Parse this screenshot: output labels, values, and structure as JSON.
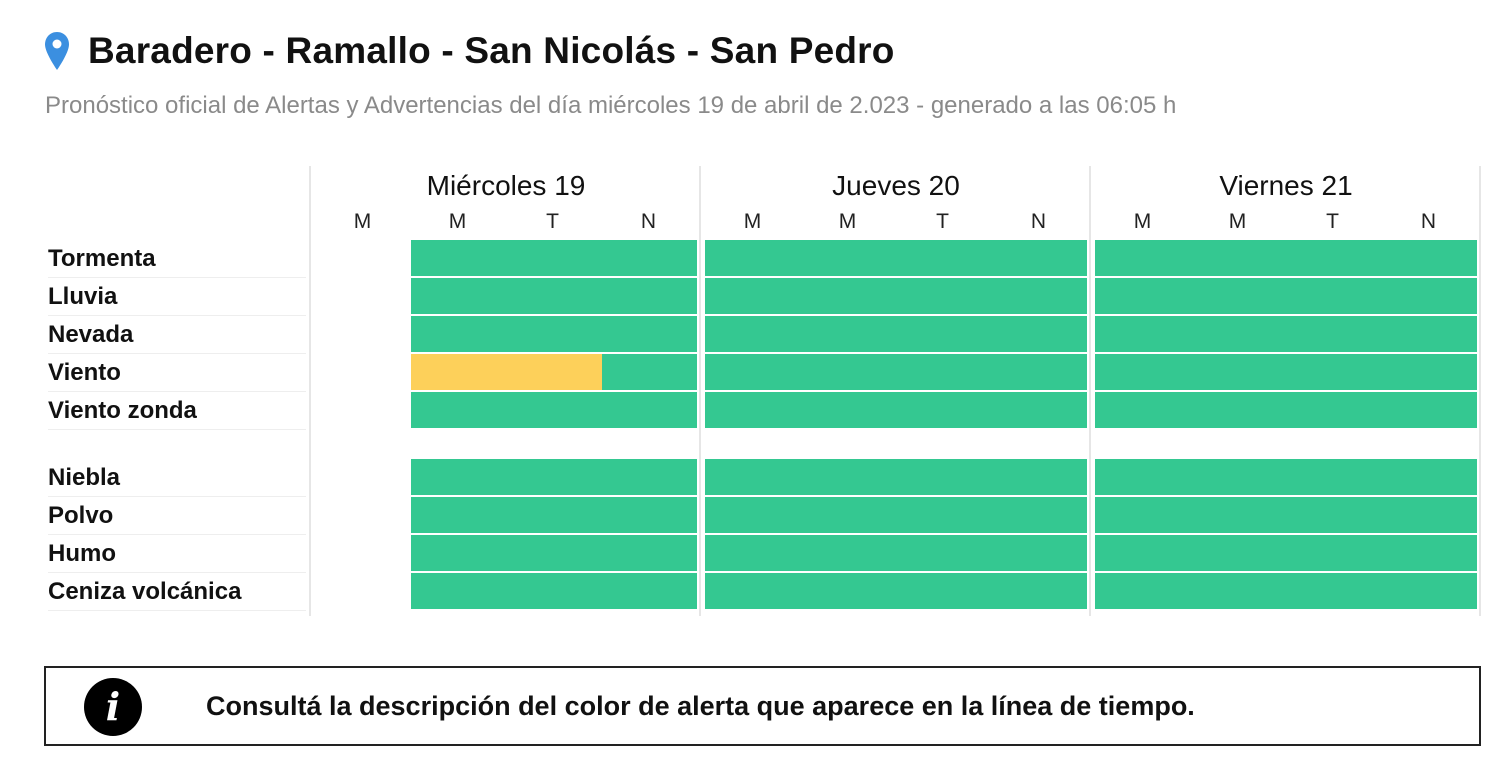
{
  "header": {
    "title": "Baradero - Ramallo - San Nicolás - San Pedro",
    "subtitle": "Pronóstico oficial de Alertas y Advertencias del día miércoles 19 de abril de 2.023 - generado a las 06:05 h",
    "pin_color": "#3b8fe0"
  },
  "timeline": {
    "days": [
      {
        "label": "Miércoles 19",
        "slots": [
          "M",
          "M",
          "T",
          "N"
        ]
      },
      {
        "label": "Jueves 20",
        "slots": [
          "M",
          "M",
          "T",
          "N"
        ]
      },
      {
        "label": "Viernes 21",
        "slots": [
          "M",
          "M",
          "T",
          "N"
        ]
      }
    ],
    "colors": {
      "green": "#34c891",
      "yellow": "#fdd05a",
      "none": "#ffffff"
    },
    "groups": [
      {
        "rows": [
          {
            "label": "Tormenta",
            "levels": [
              "none",
              "green",
              "green",
              "green",
              "green",
              "green",
              "green",
              "green",
              "green",
              "green",
              "green",
              "green"
            ]
          },
          {
            "label": "Lluvia",
            "levels": [
              "none",
              "green",
              "green",
              "green",
              "green",
              "green",
              "green",
              "green",
              "green",
              "green",
              "green",
              "green"
            ]
          },
          {
            "label": "Nevada",
            "levels": [
              "none",
              "green",
              "green",
              "green",
              "green",
              "green",
              "green",
              "green",
              "green",
              "green",
              "green",
              "green"
            ]
          },
          {
            "label": "Viento",
            "levels": [
              "none",
              "yellow",
              "yellow",
              "green",
              "green",
              "green",
              "green",
              "green",
              "green",
              "green",
              "green",
              "green"
            ]
          },
          {
            "label": "Viento zonda",
            "levels": [
              "none",
              "green",
              "green",
              "green",
              "green",
              "green",
              "green",
              "green",
              "green",
              "green",
              "green",
              "green"
            ]
          }
        ]
      },
      {
        "rows": [
          {
            "label": "Niebla",
            "levels": [
              "none",
              "green",
              "green",
              "green",
              "green",
              "green",
              "green",
              "green",
              "green",
              "green",
              "green",
              "green"
            ]
          },
          {
            "label": "Polvo",
            "levels": [
              "none",
              "green",
              "green",
              "green",
              "green",
              "green",
              "green",
              "green",
              "green",
              "green",
              "green",
              "green"
            ]
          },
          {
            "label": "Humo",
            "levels": [
              "none",
              "green",
              "green",
              "green",
              "green",
              "green",
              "green",
              "green",
              "green",
              "green",
              "green",
              "green"
            ]
          },
          {
            "label": "Ceniza volcánica",
            "levels": [
              "none",
              "green",
              "green",
              "green",
              "green",
              "green",
              "green",
              "green",
              "green",
              "green",
              "green",
              "green"
            ]
          }
        ]
      }
    ]
  },
  "info": {
    "icon": "info-icon",
    "icon_glyph": "i",
    "text": "Consultá la descripción del color de alerta que aparece en la línea de tiempo."
  }
}
